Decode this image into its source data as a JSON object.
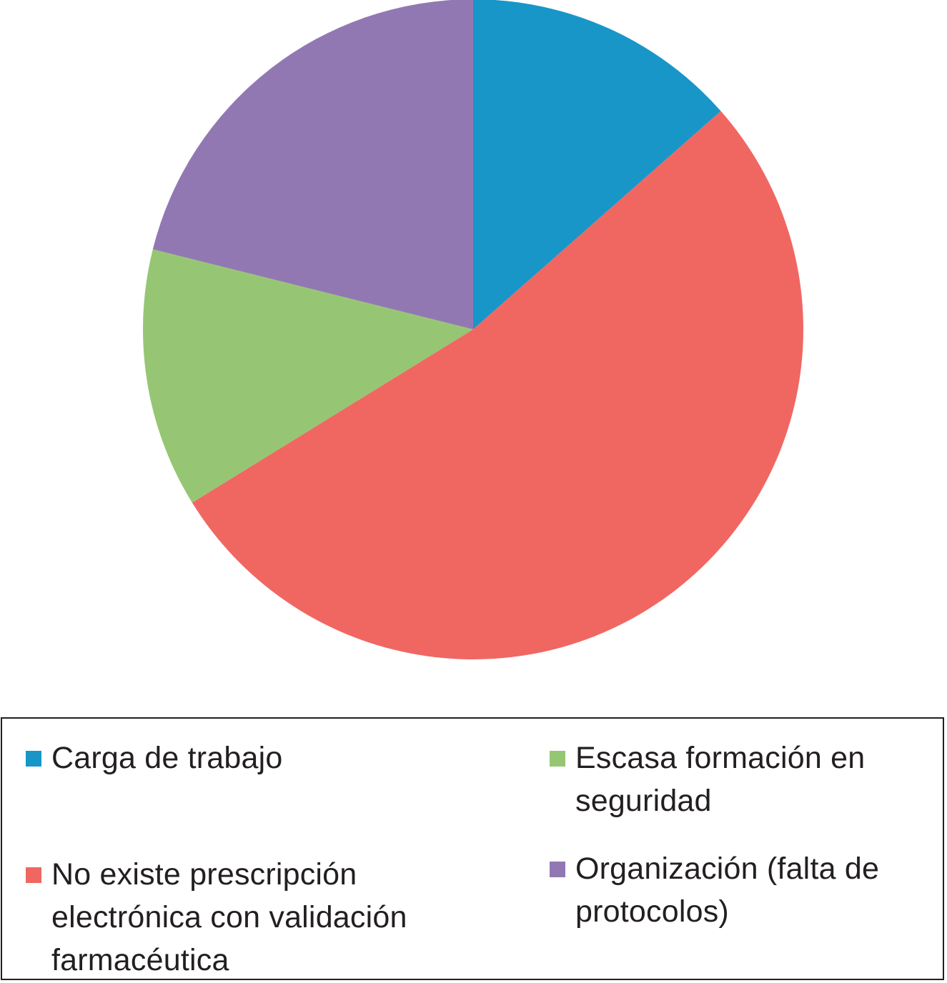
{
  "chart_data": {
    "type": "pie",
    "title": "",
    "categories": [
      "Carga de trabajo",
      "No existe prescripción electrónica con validación farmacéutica",
      "Escasa formación en seguridad",
      "Organización (falta de protocolos)"
    ],
    "values": [
      13.5,
      52.7,
      12.7,
      21.1
    ],
    "colors": [
      "#1896c8",
      "#f06762",
      "#96c673",
      "#9278b3"
    ],
    "start_angle": "12 o'clock",
    "direction": "clockwise",
    "legend_placement": "bottom"
  },
  "legend": {
    "items": [
      {
        "label": "Carga de trabajo",
        "color": "#1896c8"
      },
      {
        "label": "No existe prescripción electrónica con validación farmacéutica",
        "color": "#f06762"
      },
      {
        "label": "Escasa formación en seguridad",
        "color": "#96c673"
      },
      {
        "label": "Organización (falta de protocolos)",
        "color": "#9278b3"
      }
    ]
  }
}
